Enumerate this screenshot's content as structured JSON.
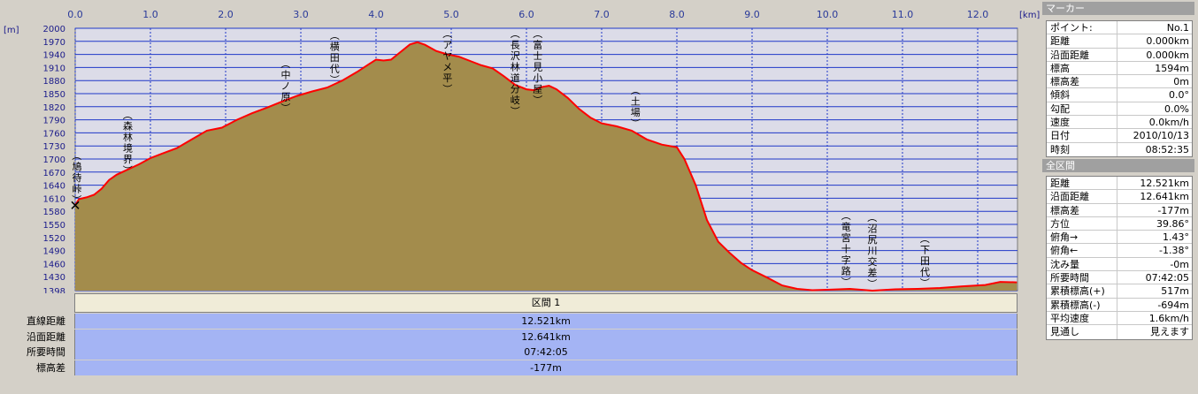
{
  "chart_data": {
    "type": "area",
    "x_unit": "[km]",
    "y_unit": "[m]",
    "xlim": [
      0,
      12.521
    ],
    "ylim": [
      1398,
      2000
    ],
    "x_ticks": [
      "0.0",
      "1.0",
      "2.0",
      "3.0",
      "4.0",
      "5.0",
      "6.0",
      "7.0",
      "8.0",
      "9.0",
      "10.0",
      "11.0",
      "12.0"
    ],
    "y_ticks": [
      "2000",
      "1970",
      "1940",
      "1910",
      "1880",
      "1850",
      "1820",
      "1790",
      "1760",
      "1730",
      "1700",
      "1670",
      "1640",
      "1610",
      "1580",
      "1550",
      "1520",
      "1490",
      "1460",
      "1430",
      "1398"
    ],
    "series": [
      {
        "x": [
          0.0,
          0.05,
          0.15,
          0.25,
          0.35,
          0.45,
          0.55,
          0.65,
          0.75,
          0.85,
          1.0,
          1.15,
          1.35,
          1.55,
          1.75,
          1.95,
          2.15,
          2.35,
          2.55,
          2.75,
          2.95,
          3.15,
          3.35,
          3.55,
          3.75,
          3.9,
          4.0,
          4.1,
          4.2,
          4.3,
          4.45,
          4.55,
          4.65,
          4.8,
          4.95,
          5.1,
          5.25,
          5.4,
          5.55,
          5.7,
          5.85,
          6.0,
          6.1,
          6.2,
          6.3,
          6.4,
          6.55,
          6.7,
          6.85,
          7.0,
          7.2,
          7.4,
          7.6,
          7.8,
          8.0,
          8.1,
          8.25,
          8.4,
          8.55,
          8.7,
          8.85,
          9.0,
          9.2,
          9.4,
          9.6,
          9.8,
          10.0,
          10.3,
          10.6,
          10.9,
          11.2,
          11.5,
          11.8,
          12.1,
          12.3,
          12.521
        ],
        "y": [
          1594,
          1608,
          1612,
          1618,
          1632,
          1652,
          1664,
          1672,
          1680,
          1688,
          1702,
          1712,
          1725,
          1745,
          1765,
          1772,
          1790,
          1805,
          1818,
          1832,
          1845,
          1855,
          1864,
          1880,
          1900,
          1917,
          1928,
          1926,
          1928,
          1942,
          1963,
          1968,
          1962,
          1948,
          1940,
          1935,
          1925,
          1915,
          1908,
          1890,
          1870,
          1860,
          1858,
          1865,
          1868,
          1860,
          1840,
          1815,
          1795,
          1782,
          1775,
          1765,
          1745,
          1733,
          1727,
          1700,
          1640,
          1560,
          1510,
          1485,
          1462,
          1445,
          1428,
          1410,
          1402,
          1399,
          1400,
          1402,
          1398,
          1401,
          1402,
          1404,
          1408,
          1411,
          1418,
          1417
        ]
      }
    ],
    "places": [
      "鳩待峠",
      "森林境界",
      "中ノ原",
      "横田代",
      "アヤメ平",
      "長沢林道分岐",
      "富士見小屋",
      "土場",
      "竜宮十字路",
      "沼尻川交差",
      "下田代"
    ],
    "place_x": [
      0.0,
      0.7,
      2.8,
      3.45,
      4.95,
      5.85,
      6.15,
      7.45,
      10.25,
      10.6,
      11.3
    ],
    "marker_line_color": "#ff0000",
    "fill_color": "#a38c4c",
    "plot_bg": "#dcdce8",
    "grid_color": "#1f37c8"
  },
  "section": {
    "header": "区間 1",
    "rows": [
      {
        "label": "直線距離",
        "value": "12.521km"
      },
      {
        "label": "沿面距離",
        "value": "12.641km"
      },
      {
        "label": "所要時間",
        "value": "07:42:05"
      },
      {
        "label": "標高差",
        "value": "-177m"
      }
    ]
  },
  "marker_panel": {
    "title": "マーカー",
    "rows": [
      {
        "label": "ポイント:",
        "value": "No.1"
      },
      {
        "label": "距離",
        "value": "0.000km"
      },
      {
        "label": "沿面距離",
        "value": "0.000km"
      },
      {
        "label": "標高",
        "value": "1594m"
      },
      {
        "label": "標高差",
        "value": "0m"
      },
      {
        "label": "傾斜",
        "value": "0.0°"
      },
      {
        "label": "勾配",
        "value": "0.0%"
      },
      {
        "label": "速度",
        "value": "0.0km/h"
      },
      {
        "label": "日付",
        "value": "2010/10/13"
      },
      {
        "label": "時刻",
        "value": "08:52:35"
      }
    ]
  },
  "total_panel": {
    "title": "全区間",
    "rows": [
      {
        "label": "距離",
        "value": "12.521km"
      },
      {
        "label": "沿面距離",
        "value": "12.641km"
      },
      {
        "label": "標高差",
        "value": "-177m"
      },
      {
        "label": "方位",
        "value": "39.86°"
      },
      {
        "label": "俯角→",
        "value": "1.43°"
      },
      {
        "label": "俯角←",
        "value": "-1.38°"
      },
      {
        "label": "沈み量",
        "value": "-0m"
      },
      {
        "label": "所要時間",
        "value": "07:42:05"
      },
      {
        "label": "累積標高(+)",
        "value": "517m"
      },
      {
        "label": "累積標高(-)",
        "value": "-694m"
      },
      {
        "label": "平均速度",
        "value": "1.6km/h"
      },
      {
        "label": "見通し",
        "value": "見えます"
      }
    ]
  }
}
